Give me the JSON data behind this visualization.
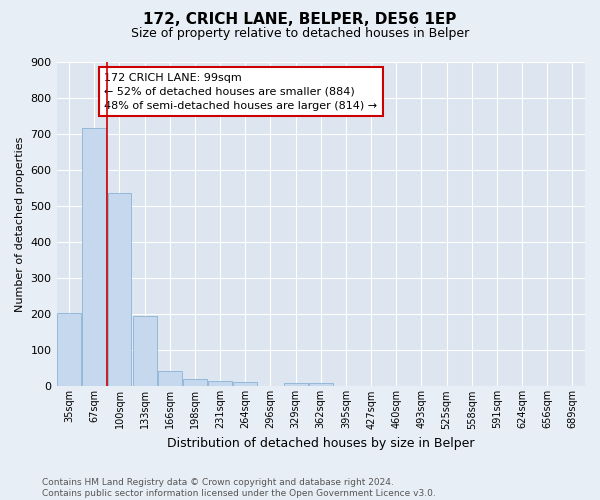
{
  "title1": "172, CRICH LANE, BELPER, DE56 1EP",
  "title2": "Size of property relative to detached houses in Belper",
  "xlabel": "Distribution of detached houses by size in Belper",
  "ylabel": "Number of detached properties",
  "categories": [
    "35sqm",
    "67sqm",
    "100sqm",
    "133sqm",
    "166sqm",
    "198sqm",
    "231sqm",
    "264sqm",
    "296sqm",
    "329sqm",
    "362sqm",
    "395sqm",
    "427sqm",
    "460sqm",
    "493sqm",
    "525sqm",
    "558sqm",
    "591sqm",
    "624sqm",
    "656sqm",
    "689sqm"
  ],
  "values": [
    203,
    715,
    535,
    195,
    44,
    20,
    15,
    12,
    0,
    10,
    10,
    0,
    0,
    0,
    0,
    0,
    0,
    0,
    0,
    0,
    0
  ],
  "bar_color": "#c5d8ed",
  "bar_edge_color": "#8ab4d4",
  "vline_x": 1.5,
  "vline_color": "#cc0000",
  "annotation_text": "172 CRICH LANE: 99sqm\n← 52% of detached houses are smaller (884)\n48% of semi-detached houses are larger (814) →",
  "annotation_box_color": "#ffffff",
  "annotation_box_edge": "#cc0000",
  "background_color": "#e8eef5",
  "plot_bg_color": "#dde6f0",
  "grid_color": "#ffffff",
  "footer_text": "Contains HM Land Registry data © Crown copyright and database right 2024.\nContains public sector information licensed under the Open Government Licence v3.0.",
  "ylim": [
    0,
    900
  ],
  "yticks": [
    0,
    100,
    200,
    300,
    400,
    500,
    600,
    700,
    800,
    900
  ]
}
